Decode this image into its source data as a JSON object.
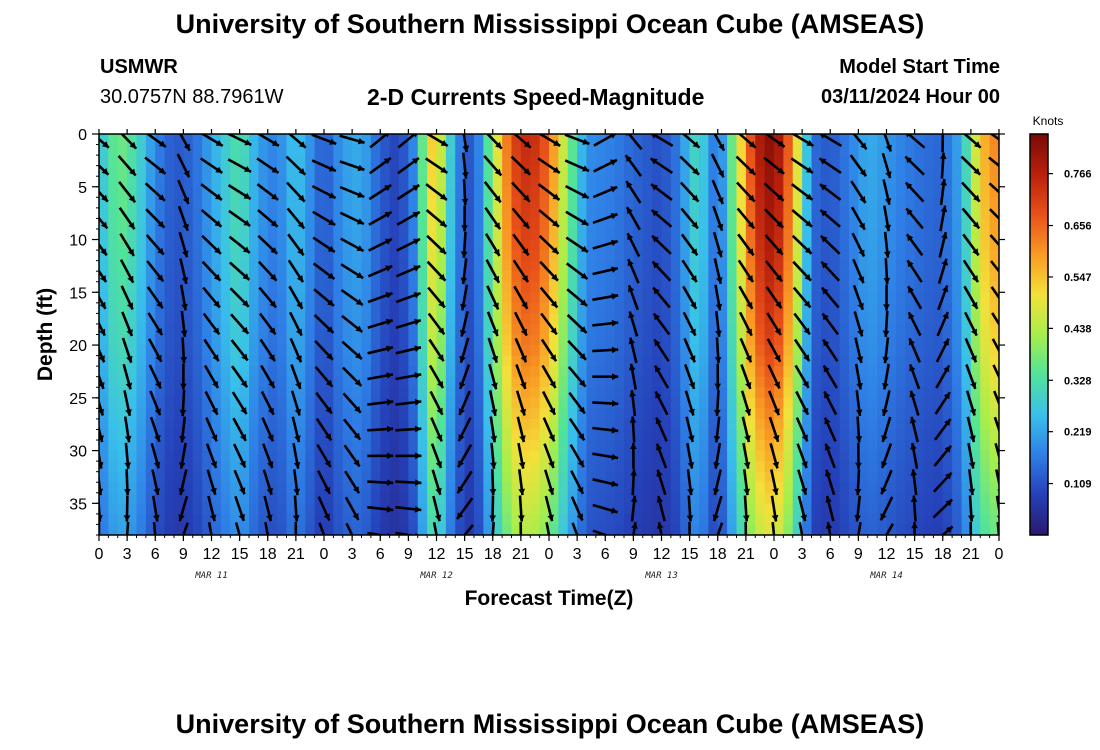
{
  "page": {
    "title": "University of Southern Mississippi Ocean Cube (AMSEAS)",
    "footer_title": "University of Southern Mississippi Ocean Cube (AMSEAS)",
    "station": "USMWR",
    "coordinates": "30.0757N  88.7961W",
    "subtitle": "2-D Currents Speed-Magnitude",
    "model_start_label": "Model Start Time",
    "model_start_value": "03/11/2024 Hour 00"
  },
  "chart_data": {
    "type": "heatmap",
    "title": "2-D Currents Speed-Magnitude",
    "xlabel": "Forecast Time(Z)",
    "ylabel": "Depth (ft)",
    "x_range_hours": [
      0,
      96
    ],
    "y_range_ft": [
      0,
      38
    ],
    "x_tick_labels": [
      "0",
      "3",
      "6",
      "9",
      "12",
      "15",
      "18",
      "21",
      "0",
      "3",
      "6",
      "9",
      "12",
      "15",
      "18",
      "21",
      "0",
      "3",
      "6",
      "9",
      "12",
      "15",
      "18",
      "21",
      "0",
      "3",
      "6",
      "9",
      "12",
      "15",
      "18",
      "21",
      "0"
    ],
    "x_day_labels": [
      {
        "hour": 12,
        "label": "MAR 11"
      },
      {
        "hour": 36,
        "label": "MAR 12"
      },
      {
        "hour": 60,
        "label": "MAR 13"
      },
      {
        "hour": 84,
        "label": "MAR 14"
      }
    ],
    "y_ticks": [
      0,
      5,
      10,
      15,
      20,
      25,
      30,
      35
    ],
    "colorbar": {
      "unit": "Knots",
      "range": [
        0,
        0.85
      ],
      "tick_values": [
        0.766,
        0.656,
        0.547,
        0.438,
        0.328,
        0.219,
        0.109
      ],
      "tick_labels": [
        "0.766",
        "0.656",
        "0.547",
        "0.438",
        "0.328",
        "0.219",
        "0.109"
      ],
      "colors": [
        "#2a1a6e",
        "#2540b8",
        "#2f7fe6",
        "#39c0ea",
        "#52e39a",
        "#a8ee4a",
        "#f4e03a",
        "#f99a24",
        "#e8501a",
        "#b8200c",
        "#7a0a06"
      ]
    },
    "speed_time_profile": [
      {
        "hour": 0,
        "speed": 0.24
      },
      {
        "hour": 2,
        "speed": 0.36
      },
      {
        "hour": 4,
        "speed": 0.3
      },
      {
        "hour": 6,
        "speed": 0.17
      },
      {
        "hour": 8,
        "speed": 0.11
      },
      {
        "hour": 10,
        "speed": 0.13
      },
      {
        "hour": 13,
        "speed": 0.25
      },
      {
        "hour": 15,
        "speed": 0.32
      },
      {
        "hour": 17,
        "speed": 0.2
      },
      {
        "hour": 19,
        "speed": 0.16
      },
      {
        "hour": 21,
        "speed": 0.26
      },
      {
        "hour": 22,
        "speed": 0.21
      },
      {
        "hour": 24,
        "speed": 0.11
      },
      {
        "hour": 26,
        "speed": 0.2
      },
      {
        "hour": 28,
        "speed": 0.22
      },
      {
        "hour": 30,
        "speed": 0.12
      },
      {
        "hour": 32,
        "speed": 0.08
      },
      {
        "hour": 34,
        "speed": 0.2
      },
      {
        "hour": 35,
        "speed": 0.48
      },
      {
        "hour": 36,
        "speed": 0.52
      },
      {
        "hour": 38,
        "speed": 0.18
      },
      {
        "hour": 40,
        "speed": 0.09
      },
      {
        "hour": 42,
        "speed": 0.4
      },
      {
        "hour": 44,
        "speed": 0.66
      },
      {
        "hour": 46,
        "speed": 0.72
      },
      {
        "hour": 48,
        "speed": 0.62
      },
      {
        "hour": 50,
        "speed": 0.38
      },
      {
        "hour": 52,
        "speed": 0.18
      },
      {
        "hour": 55,
        "speed": 0.16
      },
      {
        "hour": 57,
        "speed": 0.13
      },
      {
        "hour": 60,
        "speed": 0.1
      },
      {
        "hour": 62,
        "speed": 0.16
      },
      {
        "hour": 63,
        "speed": 0.26
      },
      {
        "hour": 64,
        "speed": 0.3
      },
      {
        "hour": 66,
        "speed": 0.12
      },
      {
        "hour": 68,
        "speed": 0.42
      },
      {
        "hour": 70,
        "speed": 0.72
      },
      {
        "hour": 72,
        "speed": 0.8
      },
      {
        "hour": 74,
        "speed": 0.58
      },
      {
        "hour": 76,
        "speed": 0.14
      },
      {
        "hour": 78,
        "speed": 0.11
      },
      {
        "hour": 80,
        "speed": 0.16
      },
      {
        "hour": 82,
        "speed": 0.22
      },
      {
        "hour": 84,
        "speed": 0.19
      },
      {
        "hour": 86,
        "speed": 0.16
      },
      {
        "hour": 88,
        "speed": 0.14
      },
      {
        "hour": 90,
        "speed": 0.13
      },
      {
        "hour": 92,
        "speed": 0.22
      },
      {
        "hour": 94,
        "speed": 0.52
      },
      {
        "hour": 96,
        "speed": 0.6
      }
    ],
    "speed_depth_factor": [
      {
        "depth": 0,
        "factor": 1.06
      },
      {
        "depth": 10,
        "factor": 1.0
      },
      {
        "depth": 20,
        "factor": 0.9
      },
      {
        "depth": 30,
        "factor": 0.74
      },
      {
        "depth": 38,
        "factor": 0.62
      }
    ],
    "vector_spacing": {
      "hours": 3,
      "depth_ft": 2.5
    },
    "vector_direction_profile_deg_cw_from_east": [
      {
        "hour": 0,
        "dir": 40
      },
      {
        "hour": 3,
        "dir": 45
      },
      {
        "hour": 6,
        "dir": 35
      },
      {
        "hour": 9,
        "dir": 60
      },
      {
        "hour": 12,
        "dir": 30
      },
      {
        "hour": 15,
        "dir": 25
      },
      {
        "hour": 18,
        "dir": 30
      },
      {
        "hour": 21,
        "dir": 40
      },
      {
        "hour": 24,
        "dir": 20
      },
      {
        "hour": 27,
        "dir": 15
      },
      {
        "hour": 30,
        "dir": -40
      },
      {
        "hour": 33,
        "dir": -40
      },
      {
        "hour": 36,
        "dir": 30
      },
      {
        "hour": 39,
        "dir": 80
      },
      {
        "hour": 42,
        "dir": 45
      },
      {
        "hour": 45,
        "dir": 40
      },
      {
        "hour": 48,
        "dir": 30
      },
      {
        "hour": 51,
        "dir": 20
      },
      {
        "hour": 54,
        "dir": -30
      },
      {
        "hour": 57,
        "dir": -130
      },
      {
        "hour": 60,
        "dir": -150
      },
      {
        "hour": 63,
        "dir": 40
      },
      {
        "hour": 66,
        "dir": 60
      },
      {
        "hour": 69,
        "dir": 40
      },
      {
        "hour": 72,
        "dir": 35
      },
      {
        "hour": 75,
        "dir": 30
      },
      {
        "hour": 78,
        "dir": -150
      },
      {
        "hour": 81,
        "dir": 50
      },
      {
        "hour": 84,
        "dir": 70
      },
      {
        "hour": 87,
        "dir": -140
      },
      {
        "hour": 90,
        "dir": -90
      },
      {
        "hour": 93,
        "dir": 40
      },
      {
        "hour": 96,
        "dir": 35
      }
    ]
  }
}
